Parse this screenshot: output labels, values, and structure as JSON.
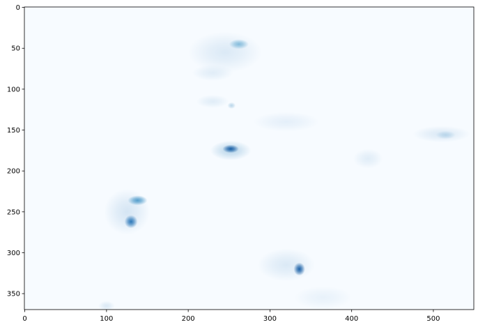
{
  "chart_data": {
    "type": "heatmap",
    "title": "",
    "xlabel": "",
    "ylabel": "",
    "colormap": "Blues",
    "colors": {
      "low": "#f7fbff",
      "high": "#08306b",
      "axis": "#000000",
      "background": "#ffffff"
    },
    "image_width": 550,
    "image_height": 370,
    "xlim": [
      -0.5,
      549.5
    ],
    "ylim": [
      369.5,
      -0.5
    ],
    "y_inverted": true,
    "grid": false,
    "x_ticks": [
      0,
      100,
      200,
      300,
      400,
      500
    ],
    "x_tick_labels": [
      "0",
      "100",
      "200",
      "300",
      "400",
      "500"
    ],
    "y_ticks": [
      0,
      50,
      100,
      150,
      200,
      250,
      300,
      350
    ],
    "y_tick_labels": [
      "0",
      "50",
      "100",
      "150",
      "200",
      "250",
      "300",
      "350"
    ],
    "features": [
      {
        "name": "cloud-band-north",
        "x": 245,
        "y": 55,
        "rx": 45,
        "ry": 25,
        "intensity": 0.15
      },
      {
        "name": "cloud-core-north",
        "x": 262,
        "y": 45,
        "rx": 12,
        "ry": 6,
        "intensity": 0.45
      },
      {
        "name": "cloud-patch-north-lower",
        "x": 230,
        "y": 80,
        "rx": 25,
        "ry": 10,
        "intensity": 0.12
      },
      {
        "name": "cloud-streak-mid-left",
        "x": 230,
        "y": 115,
        "rx": 20,
        "ry": 8,
        "intensity": 0.12
      },
      {
        "name": "cloud-fleck-mid",
        "x": 253,
        "y": 120,
        "rx": 5,
        "ry": 4,
        "intensity": 0.3
      },
      {
        "name": "cloud-streak-mid",
        "x": 320,
        "y": 140,
        "rx": 40,
        "ry": 12,
        "intensity": 0.1
      },
      {
        "name": "cloud-streak-east",
        "x": 510,
        "y": 155,
        "rx": 35,
        "ry": 10,
        "intensity": 0.15
      },
      {
        "name": "cloud-core-east",
        "x": 515,
        "y": 156,
        "rx": 12,
        "ry": 5,
        "intensity": 0.3
      },
      {
        "name": "storm-center",
        "x": 252,
        "y": 175,
        "rx": 25,
        "ry": 12,
        "intensity": 0.3
      },
      {
        "name": "storm-center-core",
        "x": 252,
        "y": 173,
        "rx": 10,
        "ry": 5,
        "intensity": 0.85
      },
      {
        "name": "cloud-patch-center-east",
        "x": 420,
        "y": 185,
        "rx": 18,
        "ry": 12,
        "intensity": 0.12
      },
      {
        "name": "cyclone-southwest",
        "x": 125,
        "y": 250,
        "rx": 28,
        "ry": 28,
        "intensity": 0.18
      },
      {
        "name": "cyclone-southwest-arm",
        "x": 138,
        "y": 236,
        "rx": 12,
        "ry": 6,
        "intensity": 0.6
      },
      {
        "name": "cyclone-southwest-core",
        "x": 130,
        "y": 262,
        "rx": 8,
        "ry": 8,
        "intensity": 0.75
      },
      {
        "name": "storm-south",
        "x": 320,
        "y": 315,
        "rx": 35,
        "ry": 20,
        "intensity": 0.15
      },
      {
        "name": "storm-south-core",
        "x": 336,
        "y": 320,
        "rx": 7,
        "ry": 8,
        "intensity": 0.85
      },
      {
        "name": "cloud-trail-south",
        "x": 365,
        "y": 355,
        "rx": 35,
        "ry": 14,
        "intensity": 0.08
      },
      {
        "name": "cloud-patch-southwest",
        "x": 100,
        "y": 365,
        "rx": 10,
        "ry": 6,
        "intensity": 0.15
      }
    ]
  }
}
